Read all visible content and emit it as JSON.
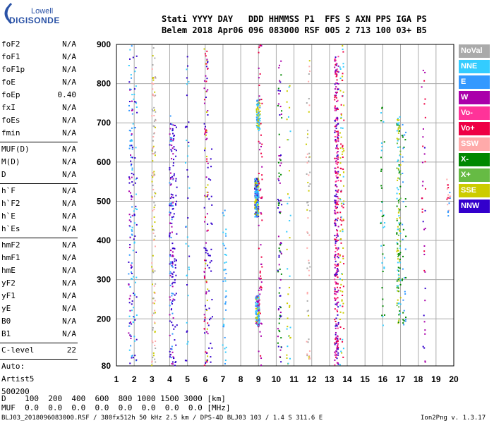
{
  "logo": {
    "line1": "Lowell",
    "line2": "DIGISONDE"
  },
  "header": {
    "labels": "Stati YYYY DAY   DDD HHMMSS P1  FFS S AXN PPS IGA PS",
    "values": "Belem 2018 Apr06 096 083000 RSF 005 2 713 100 03+ B5"
  },
  "params_group1": [
    {
      "name": "foF2",
      "value": "N/A"
    },
    {
      "name": "foF1",
      "value": "N/A"
    },
    {
      "name": "foF1p",
      "value": "N/A"
    },
    {
      "name": "foE",
      "value": "N/A"
    },
    {
      "name": "foEp",
      "value": "0.40"
    },
    {
      "name": "fxI",
      "value": "N/A"
    },
    {
      "name": "foEs",
      "value": "N/A"
    },
    {
      "name": "fmin",
      "value": "N/A"
    }
  ],
  "params_group2": [
    {
      "name": "MUF(D)",
      "value": "N/A"
    },
    {
      "name": "M(D)",
      "value": "N/A"
    },
    {
      "name": "D",
      "value": "N/A"
    }
  ],
  "params_group3": [
    {
      "name": "h`F",
      "value": "N/A"
    },
    {
      "name": "h`F2",
      "value": "N/A"
    },
    {
      "name": "h`E",
      "value": "N/A"
    },
    {
      "name": "h`Es",
      "value": "N/A"
    }
  ],
  "params_group4": [
    {
      "name": "hmF2",
      "value": "N/A"
    },
    {
      "name": "hmF1",
      "value": "N/A"
    },
    {
      "name": "hmE",
      "value": "N/A"
    },
    {
      "name": "yF2",
      "value": "N/A"
    },
    {
      "name": "yF1",
      "value": "N/A"
    },
    {
      "name": "yE",
      "value": "N/A"
    },
    {
      "name": "B0",
      "value": "N/A"
    },
    {
      "name": "B1",
      "value": "N/A"
    }
  ],
  "c_level": {
    "name": "C-level",
    "value": "22"
  },
  "auto": {
    "line1": "Auto:",
    "line2": "Artist5",
    "line3": "500200"
  },
  "legend": [
    {
      "label": "NoVal",
      "color": "#aaaaaa"
    },
    {
      "label": "NNE",
      "color": "#33ccff"
    },
    {
      "label": "E",
      "color": "#3399ff"
    },
    {
      "label": "W",
      "color": "#aa00aa"
    },
    {
      "label": "Vo-",
      "color": "#ff3399"
    },
    {
      "label": "Vo+",
      "color": "#ee0044"
    },
    {
      "label": "SSW",
      "color": "#ffaaaa"
    },
    {
      "label": "X-",
      "color": "#008800"
    },
    {
      "label": "X+",
      "color": "#66bb44"
    },
    {
      "label": "SSE",
      "color": "#cccc00"
    },
    {
      "label": "NNW",
      "color": "#3300cc"
    }
  ],
  "d_line": "D    100  200  400  600  800 1000 1500 3000 [km]",
  "muf_line": "MUF  0.0  0.0  0.0  0.0  0.0  0.0  0.0  0.0 [MHz]",
  "footer_left": "BLJ03_2018096083000.RSF / 380fx512h 50 kHz 2.5 km / DPS-4D BLJ03 103 / 1.4 S 311.6 E",
  "footer_right": "Ion2Png v. 1.3.17",
  "chart_data": {
    "type": "scatter",
    "xlim": [
      1,
      20
    ],
    "ylim": [
      80,
      900
    ],
    "x_ticks": [
      1,
      2,
      3,
      4,
      5,
      6,
      7,
      8,
      9,
      10,
      11,
      12,
      13,
      14,
      15,
      16,
      17,
      18,
      19,
      20
    ],
    "y_ticks": [
      80,
      200,
      300,
      400,
      500,
      600,
      700,
      800,
      900
    ],
    "grid": true,
    "series": [
      {
        "x_center": 1.8,
        "y_range": [
          80,
          900
        ],
        "colors": [
          "#33ccff",
          "#3399ff",
          "#3300cc",
          "#aa00aa"
        ],
        "density": 110
      },
      {
        "x_center": 2.05,
        "y_range": [
          80,
          900
        ],
        "colors": [
          "#33ccff",
          "#3300cc"
        ],
        "density": 60
      },
      {
        "x_center": 3.1,
        "y_range": [
          80,
          900
        ],
        "colors": [
          "#ffaaaa",
          "#cccc00",
          "#aaaaaa"
        ],
        "density": 120
      },
      {
        "x_center": 4.1,
        "y_range": [
          80,
          720
        ],
        "colors": [
          "#3300cc",
          "#aa00aa",
          "#3399ff"
        ],
        "density": 130
      },
      {
        "x_center": 4.3,
        "y_range": [
          80,
          700
        ],
        "colors": [
          "#3300cc"
        ],
        "density": 50
      },
      {
        "x_center": 5.0,
        "y_range": [
          80,
          880
        ],
        "colors": [
          "#3300cc",
          "#33ccff"
        ],
        "density": 40
      },
      {
        "x_center": 6.05,
        "y_range": [
          80,
          900
        ],
        "colors": [
          "#3300cc",
          "#aa00aa",
          "#cccc00",
          "#ee0044"
        ],
        "density": 110
      },
      {
        "x_center": 6.3,
        "y_range": [
          80,
          640
        ],
        "colors": [
          "#3300cc"
        ],
        "density": 30
      },
      {
        "x_center": 7.1,
        "y_range": [
          80,
          480
        ],
        "colors": [
          "#33ccff",
          "#3399ff"
        ],
        "density": 40
      },
      {
        "x_center": 8.9,
        "y_range": [
          460,
          560
        ],
        "colors": [
          "#33ccff",
          "#3399ff",
          "#cccc00",
          "#3300cc"
        ],
        "density": 220
      },
      {
        "x_center": 8.95,
        "y_range": [
          180,
          260
        ],
        "colors": [
          "#3399ff",
          "#33ccff",
          "#aa00aa",
          "#cccc00"
        ],
        "density": 120
      },
      {
        "x_center": 9.0,
        "y_range": [
          680,
          760
        ],
        "colors": [
          "#33ccff",
          "#3399ff",
          "#cccc00"
        ],
        "density": 80
      },
      {
        "x_center": 9.1,
        "y_range": [
          80,
          900
        ],
        "colors": [
          "#aa00aa",
          "#ee0044"
        ],
        "density": 70
      },
      {
        "x_center": 10.2,
        "y_range": [
          80,
          860
        ],
        "colors": [
          "#aa00aa",
          "#3300cc",
          "#008800"
        ],
        "density": 90
      },
      {
        "x_center": 10.7,
        "y_range": [
          80,
          800
        ],
        "colors": [
          "#cccc00",
          "#33ccff"
        ],
        "density": 40
      },
      {
        "x_center": 11.8,
        "y_range": [
          80,
          900
        ],
        "colors": [
          "#ffaaaa",
          "#cccc00",
          "#aaaaaa"
        ],
        "density": 60
      },
      {
        "x_center": 13.4,
        "y_range": [
          80,
          880
        ],
        "colors": [
          "#ee0044",
          "#ff3399",
          "#aa00aa",
          "#3300cc"
        ],
        "density": 320
      },
      {
        "x_center": 13.7,
        "y_range": [
          80,
          900
        ],
        "colors": [
          "#cccc00",
          "#33ccff",
          "#ee0044"
        ],
        "density": 110
      },
      {
        "x_center": 16.0,
        "y_range": [
          180,
          760
        ],
        "colors": [
          "#008800",
          "#33ccff"
        ],
        "density": 40
      },
      {
        "x_center": 16.9,
        "y_range": [
          180,
          720
        ],
        "colors": [
          "#33ccff",
          "#008800",
          "#66bb44",
          "#cccc00"
        ],
        "density": 140
      },
      {
        "x_center": 17.2,
        "y_range": [
          180,
          700
        ],
        "colors": [
          "#008800",
          "#3399ff"
        ],
        "density": 40
      },
      {
        "x_center": 18.3,
        "y_range": [
          80,
          860
        ],
        "colors": [
          "#aa00aa",
          "#3300cc",
          "#ee0044"
        ],
        "density": 40
      },
      {
        "x_center": 19.7,
        "y_range": [
          460,
          560
        ],
        "colors": [
          "#ffaaaa",
          "#ee0044",
          "#3399ff"
        ],
        "density": 20
      }
    ]
  }
}
